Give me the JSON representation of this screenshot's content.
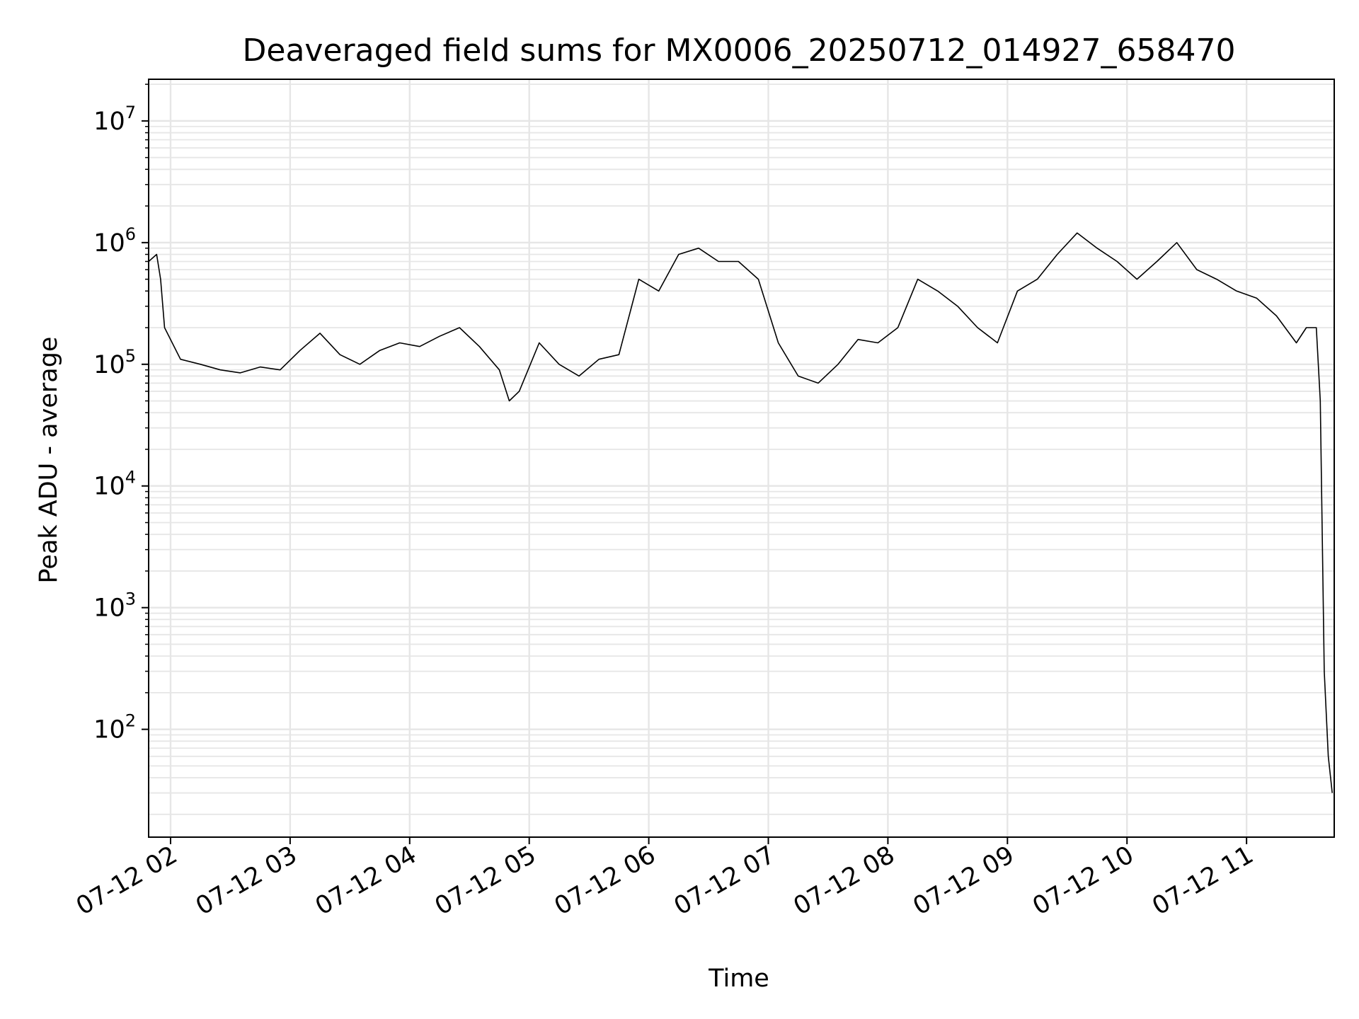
{
  "chart_data": {
    "type": "line",
    "title": "Deaveraged field sums for MX0006_20250712_014927_658470",
    "xlabel": "Time",
    "ylabel": "Peak ADU - average",
    "yscale": "log",
    "ylim": [
      13,
      22000000
    ],
    "xlim": [
      "2025-07-12T01:49",
      "2025-07-12T11:44"
    ],
    "grid": true,
    "line_color": "#000000",
    "x_ticks": [
      "07-12 02",
      "07-12 03",
      "07-12 04",
      "07-12 05",
      "07-12 06",
      "07-12 07",
      "07-12 08",
      "07-12 09",
      "07-12 10",
      "07-12 11"
    ],
    "y_ticks": [
      {
        "base": "10",
        "exp": "2"
      },
      {
        "base": "10",
        "exp": "3"
      },
      {
        "base": "10",
        "exp": "4"
      },
      {
        "base": "10",
        "exp": "5"
      },
      {
        "base": "10",
        "exp": "6"
      },
      {
        "base": "10",
        "exp": "7"
      }
    ],
    "series": [
      {
        "x": [
          "2025-07-12T01:49",
          "2025-07-12T01:53",
          "2025-07-12T01:55",
          "2025-07-12T01:57",
          "2025-07-12T02:05",
          "2025-07-12T02:15",
          "2025-07-12T02:25",
          "2025-07-12T02:35",
          "2025-07-12T02:45",
          "2025-07-12T02:55",
          "2025-07-12T03:05",
          "2025-07-12T03:15",
          "2025-07-12T03:25",
          "2025-07-12T03:35",
          "2025-07-12T03:45",
          "2025-07-12T03:55",
          "2025-07-12T04:05",
          "2025-07-12T04:15",
          "2025-07-12T04:25",
          "2025-07-12T04:35",
          "2025-07-12T04:45",
          "2025-07-12T04:50",
          "2025-07-12T04:55",
          "2025-07-12T05:05",
          "2025-07-12T05:15",
          "2025-07-12T05:25",
          "2025-07-12T05:35",
          "2025-07-12T05:45",
          "2025-07-12T05:55",
          "2025-07-12T06:05",
          "2025-07-12T06:15",
          "2025-07-12T06:25",
          "2025-07-12T06:35",
          "2025-07-12T06:45",
          "2025-07-12T06:55",
          "2025-07-12T07:05",
          "2025-07-12T07:15",
          "2025-07-12T07:25",
          "2025-07-12T07:35",
          "2025-07-12T07:45",
          "2025-07-12T07:55",
          "2025-07-12T08:05",
          "2025-07-12T08:15",
          "2025-07-12T08:25",
          "2025-07-12T08:35",
          "2025-07-12T08:45",
          "2025-07-12T08:55",
          "2025-07-12T09:05",
          "2025-07-12T09:15",
          "2025-07-12T09:25",
          "2025-07-12T09:35",
          "2025-07-12T09:45",
          "2025-07-12T09:55",
          "2025-07-12T10:05",
          "2025-07-12T10:15",
          "2025-07-12T10:25",
          "2025-07-12T10:35",
          "2025-07-12T10:45",
          "2025-07-12T10:55",
          "2025-07-12T11:05",
          "2025-07-12T11:15",
          "2025-07-12T11:25",
          "2025-07-12T11:30",
          "2025-07-12T11:35",
          "2025-07-12T11:37",
          "2025-07-12T11:39",
          "2025-07-12T11:41",
          "2025-07-12T11:43"
        ],
        "y": [
          700000,
          800000,
          500000,
          200000,
          110000,
          100000,
          90000,
          85000,
          95000,
          90000,
          130000,
          180000,
          120000,
          100000,
          130000,
          150000,
          140000,
          170000,
          200000,
          140000,
          90000,
          50000,
          60000,
          150000,
          100000,
          80000,
          110000,
          120000,
          500000,
          400000,
          800000,
          900000,
          700000,
          700000,
          500000,
          150000,
          80000,
          70000,
          100000,
          160000,
          150000,
          200000,
          500000,
          400000,
          300000,
          200000,
          150000,
          400000,
          500000,
          800000,
          1200000,
          900000,
          700000,
          500000,
          700000,
          1000000,
          600000,
          500000,
          400000,
          350000,
          250000,
          150000,
          200000,
          200000,
          50000,
          300,
          60,
          30
        ]
      }
    ]
  }
}
